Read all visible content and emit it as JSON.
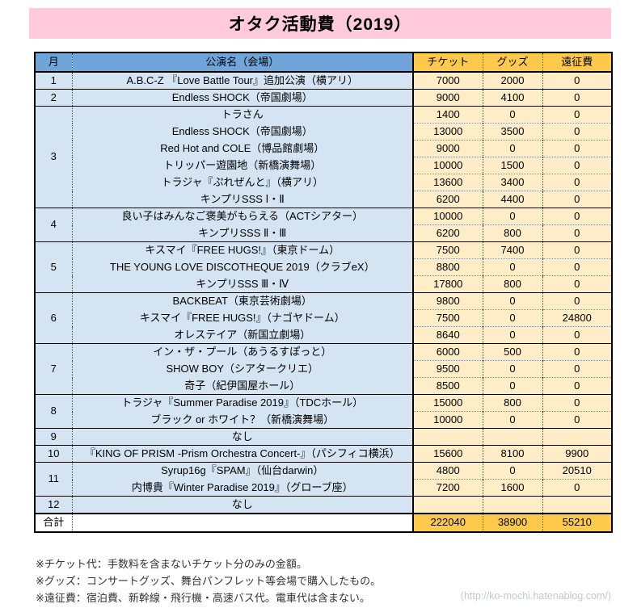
{
  "page_title": "オタク活動費（2019）",
  "colors": {
    "pink": "#FFCADB",
    "header_blue": "#6FA5D9",
    "row_blue": "#D4E4F3",
    "gold": "#FFC94C",
    "cream": "#FFEDC7"
  },
  "table": {
    "headers": {
      "month": "月",
      "name": "公演名（会場）",
      "ticket": "チケット",
      "goods": "グッズ",
      "travel": "遠征費"
    },
    "months": [
      {
        "month": "1",
        "rows": [
          {
            "name": "A.B.C-Z 『Love Battle Tour』追加公演（横アリ）",
            "ticket": "7000",
            "goods": "2000",
            "travel": "0"
          }
        ]
      },
      {
        "month": "2",
        "rows": [
          {
            "name": "Endless SHOCK（帝国劇場）",
            "ticket": "9000",
            "goods": "4100",
            "travel": "0"
          }
        ]
      },
      {
        "month": "3",
        "rows": [
          {
            "name": "トラさん",
            "ticket": "1400",
            "goods": "0",
            "travel": "0"
          },
          {
            "name": "Endless SHOCK（帝国劇場）",
            "ticket": "13000",
            "goods": "3500",
            "travel": "0"
          },
          {
            "name": "Red Hot and COLE（博品館劇場）",
            "ticket": "9000",
            "goods": "0",
            "travel": "0"
          },
          {
            "name": "トリッパー遊園地（新橋演舞場）",
            "ticket": "10000",
            "goods": "1500",
            "travel": "0"
          },
          {
            "name": "トラジャ『ぷれぜんと』（横アリ）",
            "ticket": "13600",
            "goods": "3400",
            "travel": "0"
          },
          {
            "name": "キンプリSSS Ⅰ・Ⅱ",
            "ticket": "6200",
            "goods": "4400",
            "travel": "0"
          }
        ]
      },
      {
        "month": "4",
        "rows": [
          {
            "name": "良い子はみんなご褒美がもらえる（ACTシアター）",
            "ticket": "10000",
            "goods": "0",
            "travel": "0"
          },
          {
            "name": "キンプリSSS Ⅱ・Ⅲ",
            "ticket": "6200",
            "goods": "800",
            "travel": "0"
          }
        ]
      },
      {
        "month": "5",
        "rows": [
          {
            "name": "キスマイ『FREE HUGS!』（東京ドーム）",
            "ticket": "7500",
            "goods": "7400",
            "travel": "0"
          },
          {
            "name": "THE YOUNG LOVE DISCOTHEQUE 2019（クラブeX）",
            "ticket": "8800",
            "goods": "0",
            "travel": "0"
          },
          {
            "name": "キンプリSSS Ⅲ・Ⅳ",
            "ticket": "17800",
            "goods": "800",
            "travel": "0"
          }
        ]
      },
      {
        "month": "6",
        "rows": [
          {
            "name": "BACKBEAT（東京芸術劇場）",
            "ticket": "9800",
            "goods": "0",
            "travel": "0"
          },
          {
            "name": "キスマイ『FREE HUGS!』（ナゴヤドーム）",
            "ticket": "7500",
            "goods": "0",
            "travel": "24800"
          },
          {
            "name": "オレステイア（新国立劇場）",
            "ticket": "8640",
            "goods": "0",
            "travel": "0"
          }
        ]
      },
      {
        "month": "7",
        "rows": [
          {
            "name": "イン・ザ・プール（あうるすぽっと）",
            "ticket": "6000",
            "goods": "500",
            "travel": "0"
          },
          {
            "name": "SHOW BOY（シアタークリエ）",
            "ticket": "9500",
            "goods": "0",
            "travel": "0"
          },
          {
            "name": "奇子（紀伊国屋ホール）",
            "ticket": "8500",
            "goods": "0",
            "travel": "0"
          }
        ]
      },
      {
        "month": "8",
        "rows": [
          {
            "name": "トラジャ『Summer Paradise 2019』（TDCホール）",
            "ticket": "15000",
            "goods": "800",
            "travel": "0"
          },
          {
            "name": "ブラック or ホワイト？（新橋演舞場）",
            "ticket": "10000",
            "goods": "0",
            "travel": "0"
          }
        ]
      },
      {
        "month": "9",
        "rows": [
          {
            "name": "なし",
            "ticket": "",
            "goods": "",
            "travel": ""
          }
        ]
      },
      {
        "month": "10",
        "rows": [
          {
            "name": "『KING OF PRISM -Prism Orchestra Concert-』（パシフィコ横浜）",
            "ticket": "15600",
            "goods": "8100",
            "travel": "9900"
          }
        ]
      },
      {
        "month": "11",
        "rows": [
          {
            "name": "Syrup16g『SPAM』（仙台darwin）",
            "ticket": "4800",
            "goods": "0",
            "travel": "20510"
          },
          {
            "name": "内博貴『Winter Paradise 2019』（グローブ座）",
            "ticket": "7200",
            "goods": "1600",
            "travel": "0"
          }
        ]
      },
      {
        "month": "12",
        "rows": [
          {
            "name": "なし",
            "ticket": "",
            "goods": "",
            "travel": ""
          }
        ]
      }
    ],
    "total": {
      "label": "合計",
      "ticket": "222040",
      "goods": "38900",
      "travel": "55210"
    }
  },
  "footnotes": [
    "※チケット代：手数料を含まないチケット分のみの金額。",
    "※グッズ：コンサートグッズ、舞台パンフレット等会場で購入したもの。",
    "※遠征費：宿泊費、新幹線・飛行機・高速バス代。電車代は含まない。"
  ],
  "credit": "(http://ko-mochi.hatenablog.com/)"
}
